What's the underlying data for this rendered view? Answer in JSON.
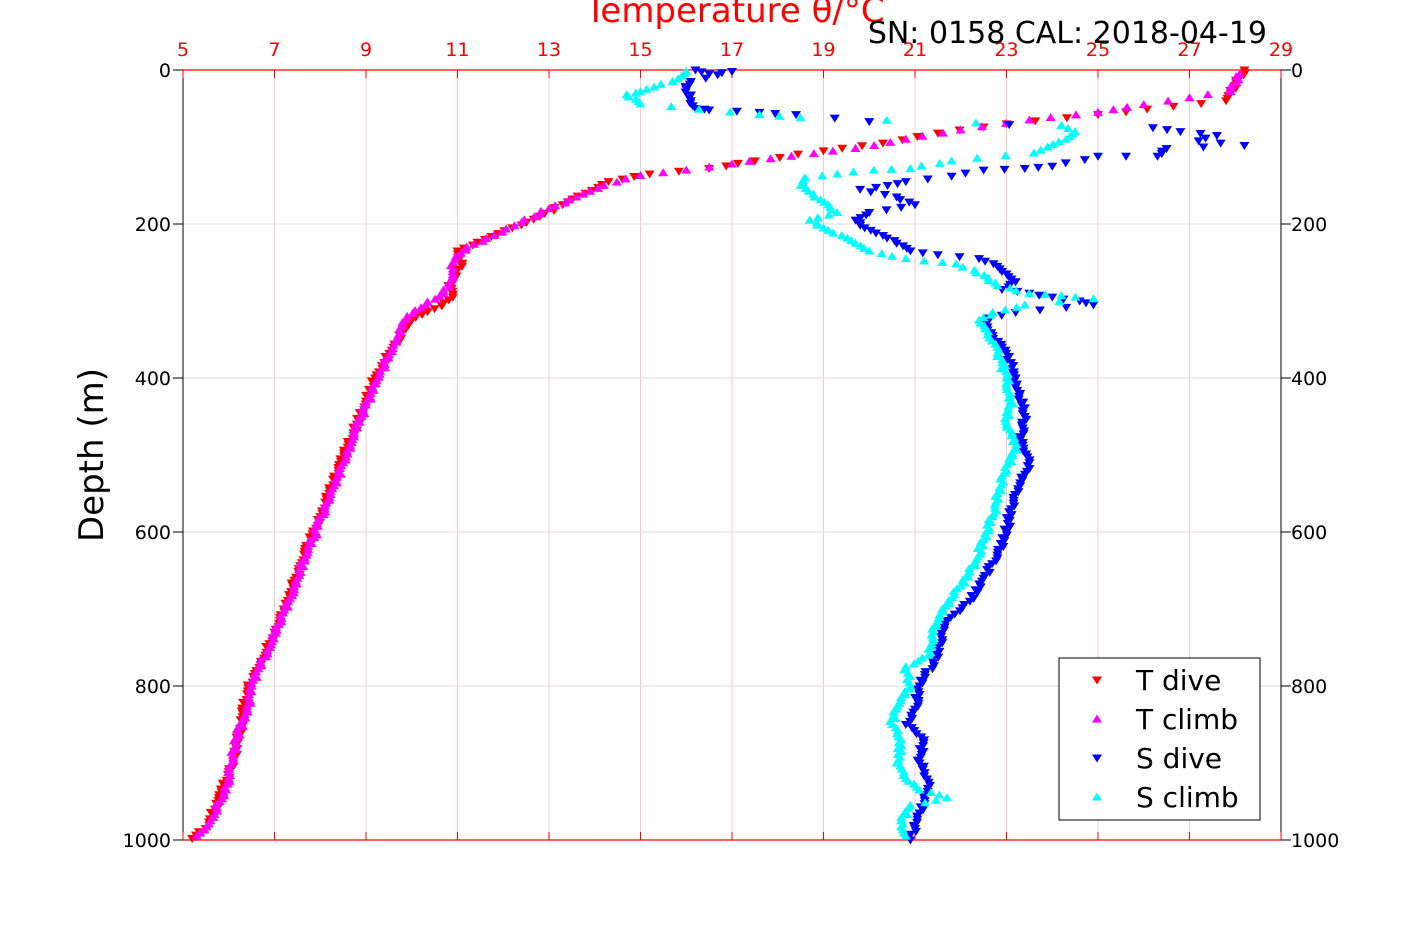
{
  "chart_data": {
    "type": "scatter",
    "title": "Temperature θ/°C",
    "subtitle": "SN: 0158  CAL: 2018-04-19",
    "xlabel": "Temperature θ/°C",
    "ylabel": "Depth (m)",
    "xlim": [
      5,
      29
    ],
    "ylim": [
      1000,
      0
    ],
    "x_ticks": [
      5,
      7,
      9,
      11,
      13,
      15,
      17,
      19,
      21,
      23,
      25,
      27,
      29
    ],
    "y_ticks": [
      0,
      200,
      400,
      600,
      800,
      1000
    ],
    "grid": true,
    "legend_position": "bottom-right",
    "series": [
      {
        "name": "T dive",
        "color": "#ff0000",
        "marker": "triangle-down",
        "points": [
          [
            28.2,
            0
          ],
          [
            28.1,
            10
          ],
          [
            28.0,
            20
          ],
          [
            27.9,
            30
          ],
          [
            27.8,
            40
          ],
          [
            25.0,
            58
          ],
          [
            23.0,
            70
          ],
          [
            21.5,
            82
          ],
          [
            20.3,
            95
          ],
          [
            19.0,
            105
          ],
          [
            17.5,
            118
          ],
          [
            16.5,
            128
          ],
          [
            15.2,
            135
          ],
          [
            14.3,
            145
          ],
          [
            13.8,
            160
          ],
          [
            13.3,
            175
          ],
          [
            12.8,
            190
          ],
          [
            12.2,
            205
          ],
          [
            11.6,
            220
          ],
          [
            11.0,
            235
          ],
          [
            11.1,
            255
          ],
          [
            10.8,
            280
          ],
          [
            10.9,
            295
          ],
          [
            10.5,
            310
          ],
          [
            10.0,
            325
          ],
          [
            9.8,
            340
          ],
          [
            9.6,
            360
          ],
          [
            9.4,
            380
          ],
          [
            9.2,
            400
          ],
          [
            9.0,
            430
          ],
          [
            8.8,
            460
          ],
          [
            8.6,
            490
          ],
          [
            8.4,
            520
          ],
          [
            8.2,
            550
          ],
          [
            8.0,
            580
          ],
          [
            7.8,
            610
          ],
          [
            7.6,
            640
          ],
          [
            7.4,
            670
          ],
          [
            7.2,
            700
          ],
          [
            7.0,
            730
          ],
          [
            6.8,
            760
          ],
          [
            6.6,
            780
          ],
          [
            6.4,
            810
          ],
          [
            6.3,
            840
          ],
          [
            6.2,
            870
          ],
          [
            6.1,
            900
          ],
          [
            5.9,
            930
          ],
          [
            5.7,
            960
          ],
          [
            5.5,
            985
          ],
          [
            5.2,
            998
          ]
        ]
      },
      {
        "name": "T climb",
        "color": "#ff00ff",
        "marker": "triangle-up",
        "points": [
          [
            28.1,
            5
          ],
          [
            27.9,
            28
          ],
          [
            27.0,
            36
          ],
          [
            26.0,
            45
          ],
          [
            25.0,
            55
          ],
          [
            23.5,
            65
          ],
          [
            22.0,
            78
          ],
          [
            20.8,
            90
          ],
          [
            19.7,
            102
          ],
          [
            18.3,
            112
          ],
          [
            17.0,
            122
          ],
          [
            16.0,
            130
          ],
          [
            15.0,
            137
          ],
          [
            14.2,
            150
          ],
          [
            13.6,
            165
          ],
          [
            13.0,
            180
          ],
          [
            12.4,
            198
          ],
          [
            11.8,
            215
          ],
          [
            11.2,
            230
          ],
          [
            10.9,
            250
          ],
          [
            10.9,
            270
          ],
          [
            10.7,
            290
          ],
          [
            10.3,
            305
          ],
          [
            9.9,
            320
          ],
          [
            9.7,
            345
          ],
          [
            9.5,
            370
          ],
          [
            9.3,
            395
          ],
          [
            9.1,
            420
          ],
          [
            8.9,
            450
          ],
          [
            8.7,
            480
          ],
          [
            8.5,
            510
          ],
          [
            8.3,
            540
          ],
          [
            8.1,
            570
          ],
          [
            7.9,
            600
          ],
          [
            7.7,
            630
          ],
          [
            7.5,
            660
          ],
          [
            7.3,
            690
          ],
          [
            7.1,
            720
          ],
          [
            6.9,
            750
          ],
          [
            6.7,
            770
          ],
          [
            6.5,
            800
          ],
          [
            6.4,
            830
          ],
          [
            6.2,
            860
          ],
          [
            6.1,
            890
          ],
          [
            6.0,
            920
          ],
          [
            5.8,
            950
          ],
          [
            5.6,
            975
          ],
          [
            5.3,
            995
          ]
        ]
      },
      {
        "name": "S dive",
        "color": "#0000ff",
        "marker": "triangle-down",
        "points": [
          [
            16.2,
            0
          ],
          [
            16.5,
            5
          ],
          [
            17.0,
            2
          ],
          [
            16.1,
            15
          ],
          [
            16.0,
            25
          ],
          [
            16.1,
            40
          ],
          [
            16.2,
            50
          ],
          [
            16.5,
            52
          ],
          [
            17.6,
            55
          ],
          [
            18.4,
            58
          ],
          [
            20.0,
            67
          ],
          [
            26.2,
            75
          ],
          [
            26.8,
            80
          ],
          [
            27.6,
            85
          ],
          [
            27.2,
            92
          ],
          [
            28.2,
            98
          ],
          [
            26.5,
            102
          ],
          [
            26.3,
            112
          ],
          [
            25.0,
            112
          ],
          [
            24.0,
            125
          ],
          [
            23.4,
            128
          ],
          [
            22.5,
            130
          ],
          [
            21.8,
            138
          ],
          [
            20.8,
            145
          ],
          [
            20.4,
            150
          ],
          [
            19.8,
            155
          ],
          [
            20.6,
            165
          ],
          [
            21.0,
            175
          ],
          [
            20.0,
            185
          ],
          [
            19.7,
            195
          ],
          [
            19.9,
            205
          ],
          [
            20.3,
            215
          ],
          [
            20.6,
            225
          ],
          [
            20.9,
            235
          ],
          [
            21.5,
            240
          ],
          [
            22.4,
            245
          ],
          [
            22.8,
            255
          ],
          [
            23.0,
            265
          ],
          [
            23.2,
            275
          ],
          [
            22.9,
            285
          ],
          [
            23.5,
            290
          ],
          [
            24.0,
            295
          ],
          [
            24.6,
            300
          ],
          [
            24.9,
            305
          ],
          [
            23.2,
            315
          ],
          [
            22.6,
            322
          ],
          [
            22.5,
            330
          ],
          [
            22.7,
            345
          ],
          [
            22.9,
            360
          ],
          [
            23.1,
            380
          ],
          [
            23.2,
            400
          ],
          [
            23.3,
            420
          ],
          [
            23.4,
            450
          ],
          [
            23.3,
            480
          ],
          [
            23.5,
            510
          ],
          [
            23.3,
            540
          ],
          [
            23.1,
            570
          ],
          [
            23.0,
            600
          ],
          [
            22.8,
            630
          ],
          [
            22.5,
            660
          ],
          [
            22.2,
            690
          ],
          [
            21.7,
            715
          ],
          [
            21.6,
            740
          ],
          [
            21.4,
            770
          ],
          [
            21.1,
            800
          ],
          [
            21.0,
            830
          ],
          [
            20.8,
            850
          ],
          [
            21.2,
            870
          ],
          [
            21.1,
            900
          ],
          [
            21.3,
            925
          ],
          [
            21.2,
            945
          ],
          [
            21.1,
            965
          ],
          [
            21.0,
            985
          ],
          [
            20.9,
            1000
          ]
        ]
      },
      {
        "name": "S climb",
        "color": "#00ffff",
        "marker": "triangle-up",
        "points": [
          [
            16.0,
            2
          ],
          [
            15.9,
            8
          ],
          [
            15.7,
            15
          ],
          [
            15.3,
            22
          ],
          [
            15.0,
            28
          ],
          [
            14.7,
            32
          ],
          [
            14.9,
            38
          ],
          [
            15.0,
            44
          ],
          [
            17.6,
            58
          ],
          [
            18.5,
            62
          ],
          [
            24.2,
            72
          ],
          [
            24.5,
            80
          ],
          [
            24.3,
            90
          ],
          [
            23.9,
            100
          ],
          [
            23.6,
            108
          ],
          [
            21.8,
            118
          ],
          [
            20.9,
            128
          ],
          [
            20.1,
            130
          ],
          [
            19.3,
            135
          ],
          [
            18.6,
            140
          ],
          [
            18.5,
            150
          ],
          [
            18.8,
            165
          ],
          [
            19.1,
            175
          ],
          [
            19.3,
            185
          ],
          [
            18.7,
            195
          ],
          [
            19.0,
            205
          ],
          [
            19.4,
            215
          ],
          [
            19.7,
            225
          ],
          [
            20.0,
            235
          ],
          [
            20.5,
            242
          ],
          [
            21.2,
            248
          ],
          [
            21.9,
            252
          ],
          [
            22.3,
            260
          ],
          [
            22.6,
            270
          ],
          [
            22.8,
            280
          ],
          [
            23.5,
            290
          ],
          [
            24.2,
            293
          ],
          [
            24.9,
            297
          ],
          [
            23.4,
            305
          ],
          [
            22.7,
            315
          ],
          [
            22.4,
            325
          ],
          [
            22.6,
            340
          ],
          [
            22.8,
            360
          ],
          [
            22.9,
            380
          ],
          [
            23.0,
            400
          ],
          [
            23.1,
            430
          ],
          [
            23.0,
            460
          ],
          [
            23.2,
            490
          ],
          [
            23.0,
            520
          ],
          [
            22.8,
            550
          ],
          [
            22.7,
            580
          ],
          [
            22.5,
            610
          ],
          [
            22.3,
            640
          ],
          [
            22.0,
            670
          ],
          [
            21.6,
            700
          ],
          [
            21.4,
            730
          ],
          [
            21.3,
            760
          ],
          [
            20.8,
            775
          ],
          [
            20.9,
            800
          ],
          [
            20.6,
            830
          ],
          [
            20.5,
            850
          ],
          [
            20.7,
            870
          ],
          [
            20.6,
            900
          ],
          [
            20.8,
            920
          ],
          [
            21.1,
            935
          ],
          [
            21.7,
            945
          ],
          [
            20.9,
            955
          ],
          [
            20.7,
            975
          ],
          [
            20.8,
            995
          ]
        ]
      }
    ]
  }
}
